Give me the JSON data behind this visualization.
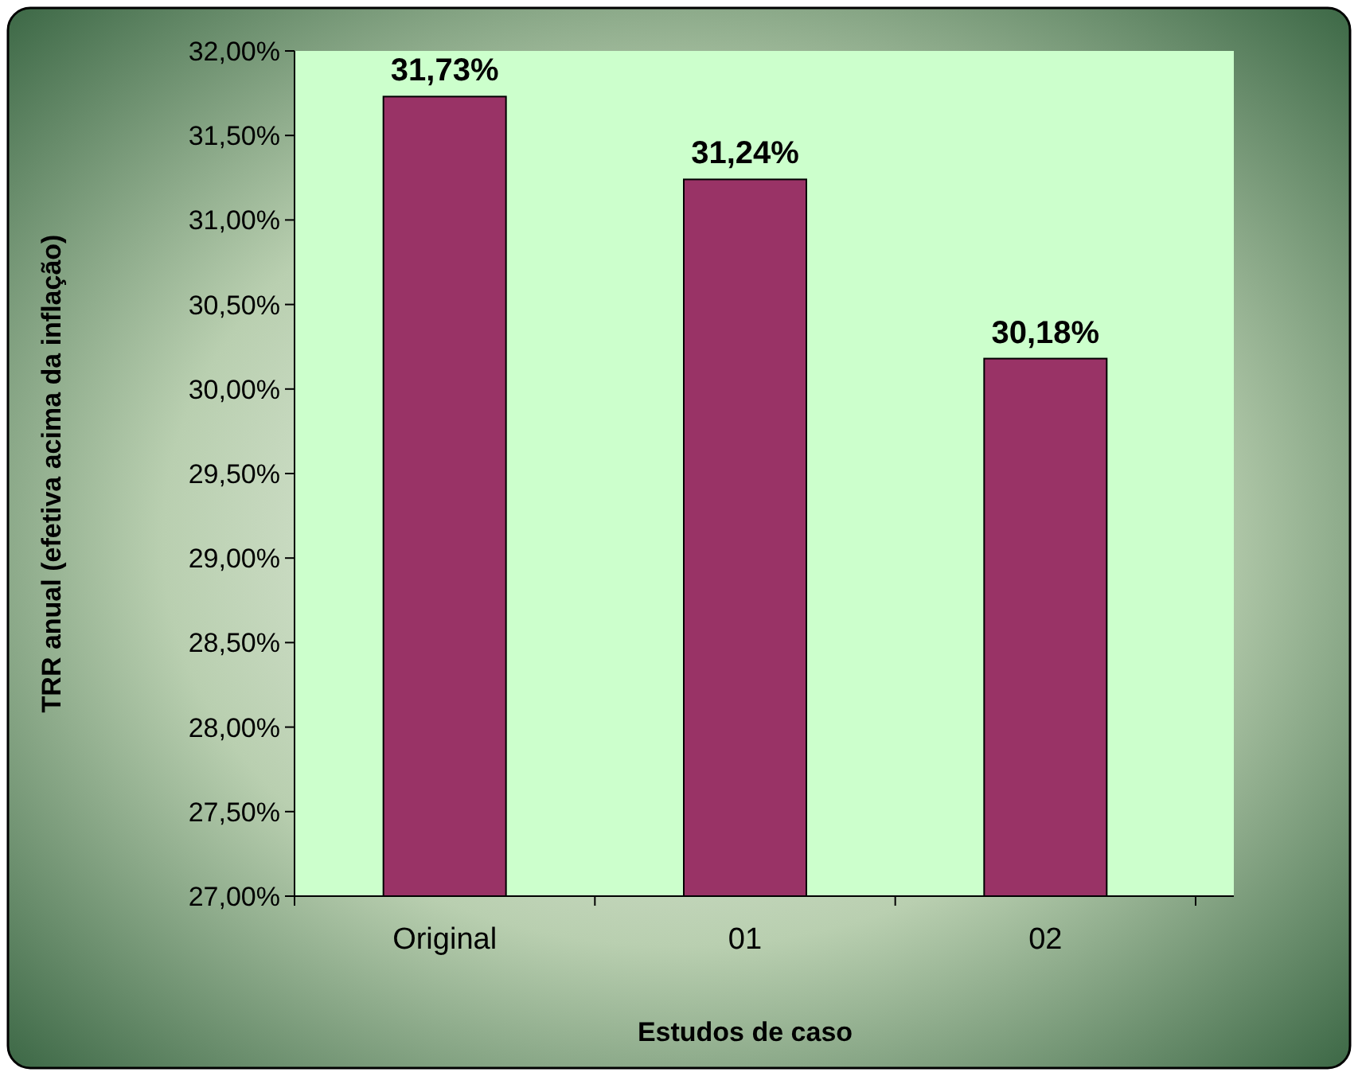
{
  "chart_data": {
    "type": "bar",
    "xlabel": "Estudos de caso",
    "ylabel": "TRR anual (efetiva acima da inflação)",
    "categories": [
      "Original",
      "01",
      "02"
    ],
    "values": [
      31.73,
      31.24,
      30.18
    ],
    "color": "#993366",
    "value_labels": [
      "31,73%",
      "31,24%",
      "30,18%"
    ],
    "ylim": [
      27,
      32
    ],
    "yticks": [
      {
        "value": 27,
        "label": "27,00%"
      },
      {
        "value": 27.5,
        "label": "27,50%"
      },
      {
        "value": 28,
        "label": "28,00%"
      },
      {
        "value": 28.5,
        "label": "28,50%"
      },
      {
        "value": 29,
        "label": "29,00%"
      },
      {
        "value": 29.5,
        "label": "29,50%"
      },
      {
        "value": 30,
        "label": "30,00%"
      },
      {
        "value": 30.5,
        "label": "30,50%"
      },
      {
        "value": 31,
        "label": "31,00%"
      },
      {
        "value": 31.5,
        "label": "31,50%"
      },
      {
        "value": 32,
        "label": "32,00%"
      }
    ],
    "grid": false
  }
}
